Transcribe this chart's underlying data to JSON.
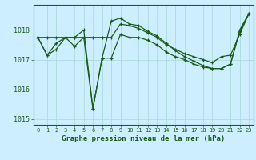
{
  "title": "Graphe pression niveau de la mer (hPa)",
  "bg_color": "#cceeff",
  "line_color": "#1a5c1a",
  "grid_color": "#a8d8d8",
  "hours": [
    0,
    1,
    2,
    3,
    4,
    5,
    6,
    7,
    8,
    9,
    10,
    11,
    12,
    13,
    14,
    15,
    16,
    17,
    18,
    19,
    20,
    21,
    22,
    23
  ],
  "line1": [
    1017.75,
    1017.75,
    1017.75,
    1017.75,
    1017.75,
    1017.75,
    1017.75,
    1017.75,
    1017.75,
    1018.2,
    1018.15,
    1018.05,
    1017.9,
    1017.75,
    1017.5,
    1017.35,
    1017.2,
    1017.1,
    1017.0,
    1016.9,
    1017.1,
    1017.15,
    1017.85,
    1018.55
  ],
  "line2": [
    1017.75,
    1017.15,
    1017.55,
    1017.75,
    1017.75,
    1018.0,
    1015.35,
    1017.05,
    1018.3,
    1018.4,
    1018.2,
    1018.15,
    1017.95,
    1017.8,
    1017.55,
    1017.3,
    1017.1,
    1016.95,
    1016.8,
    1016.7,
    1016.7,
    1016.85,
    1018.0,
    1018.55
  ],
  "line3": [
    1017.75,
    1017.15,
    1017.35,
    1017.75,
    1017.45,
    1017.75,
    1015.35,
    1017.05,
    1017.05,
    1017.85,
    1017.75,
    1017.75,
    1017.65,
    1017.5,
    1017.25,
    1017.1,
    1017.0,
    1016.85,
    1016.75,
    1016.7,
    1016.7,
    1016.85,
    1017.95,
    1018.55
  ],
  "ylim": [
    1014.8,
    1018.85
  ],
  "yticks": [
    1015,
    1016,
    1017,
    1018
  ],
  "xlim": [
    -0.5,
    23.5
  ]
}
